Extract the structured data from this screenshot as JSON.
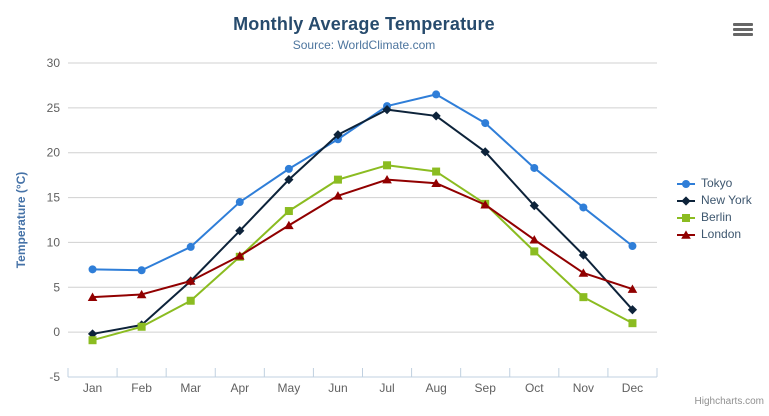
{
  "chart": {
    "credits": "Highcharts.com",
    "icons": {
      "context_menu": "hamburger-icon"
    }
  },
  "chart_data": {
    "type": "line",
    "title": "Monthly Average Temperature",
    "subtitle": "Source: WorldClimate.com",
    "xlabel": "",
    "ylabel": "Temperature (°C)",
    "categories": [
      "Jan",
      "Feb",
      "Mar",
      "Apr",
      "May",
      "Jun",
      "Jul",
      "Aug",
      "Sep",
      "Oct",
      "Nov",
      "Dec"
    ],
    "ylim": [
      -5,
      30
    ],
    "yticks": [
      -5,
      0,
      5,
      10,
      15,
      20,
      25,
      30
    ],
    "grid": true,
    "legend_position": "right",
    "series": [
      {
        "name": "Tokyo",
        "color": "#2f7ed8",
        "marker": "circle",
        "values": [
          7.0,
          6.9,
          9.5,
          14.5,
          18.2,
          21.5,
          25.2,
          26.5,
          23.3,
          18.3,
          13.9,
          9.6
        ]
      },
      {
        "name": "New York",
        "color": "#0d233a",
        "marker": "diamond",
        "values": [
          -0.2,
          0.8,
          5.7,
          11.3,
          17.0,
          22.0,
          24.8,
          24.1,
          20.1,
          14.1,
          8.6,
          2.5
        ]
      },
      {
        "name": "Berlin",
        "color": "#8bbc21",
        "marker": "square",
        "values": [
          -0.9,
          0.6,
          3.5,
          8.4,
          13.5,
          17.0,
          18.6,
          17.9,
          14.3,
          9.0,
          3.9,
          1.0
        ]
      },
      {
        "name": "London",
        "color": "#910000",
        "marker": "triangle",
        "values": [
          3.9,
          4.2,
          5.7,
          8.5,
          11.9,
          15.2,
          17.0,
          16.6,
          14.2,
          10.3,
          6.6,
          4.8
        ]
      }
    ],
    "colors": {
      "grid": "#d0d0d0",
      "axis_line": "#c0d0e0",
      "tick_label": "#606060",
      "axis_title": "#4572a7",
      "title": "#274b6d",
      "subtitle": "#4d759e",
      "legend_text": "#3e576f",
      "credits": "#909090"
    }
  }
}
